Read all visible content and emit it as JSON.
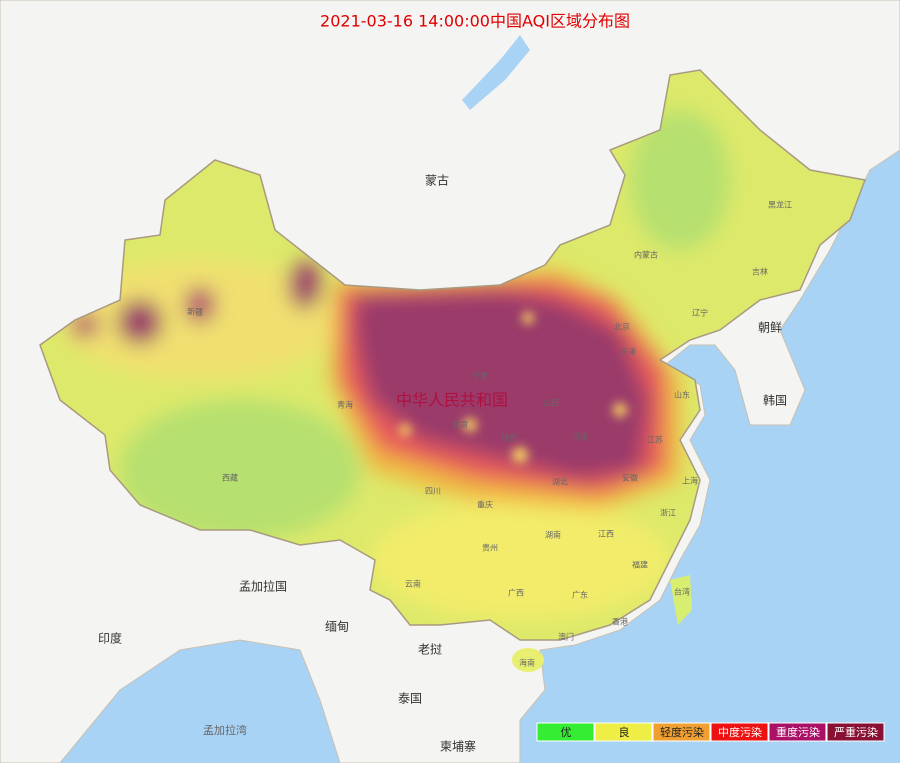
{
  "title": "2021-03-16 14:00:00中国AQI区域分布图",
  "countries": {
    "mongolia": "蒙古",
    "north_korea": "朝鲜",
    "south_korea": "韩国",
    "china": "中华人民共和国",
    "bangladesh": "孟加拉国",
    "india": "印度",
    "myanmar": "缅甸",
    "laos": "老挝",
    "thailand": "泰国",
    "bay_of_bengal": "孟加拉湾",
    "cambodia": "柬埔寨"
  },
  "provinces": [
    "黑龙江",
    "吉林",
    "内蒙古",
    "辽宁",
    "北京",
    "天津",
    "山东",
    "山西",
    "河南",
    "江苏",
    "安徽",
    "湖北",
    "陕西",
    "宁夏",
    "甘肃",
    "青海",
    "新疆",
    "西藏",
    "四川",
    "重庆",
    "贵州",
    "湖南",
    "江西",
    "浙江",
    "上海",
    "福建",
    "台湾",
    "广东",
    "广西",
    "云南",
    "海南",
    "香港",
    "澳门"
  ],
  "legend": [
    {
      "label": "优",
      "color": "#33ee33"
    },
    {
      "label": "良",
      "color": "#eeee44"
    },
    {
      "label": "轻度污染",
      "color": "#f0a030"
    },
    {
      "label": "中度污染",
      "color": "#ee1111"
    },
    {
      "label": "重度污染",
      "color": "#aa1166"
    },
    {
      "label": "严重污染",
      "color": "#881133"
    }
  ]
}
